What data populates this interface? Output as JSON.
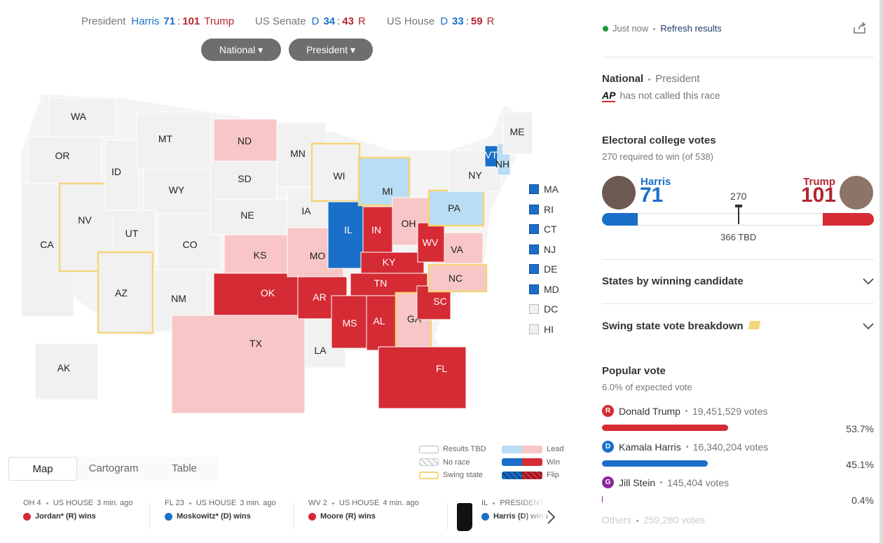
{
  "topbar": {
    "races": [
      {
        "label": "President",
        "d": "Harris",
        "d_votes": 71,
        "sep": ":",
        "r_votes": 101,
        "r": "Trump"
      },
      {
        "label": "US Senate",
        "d": "D",
        "d_votes": 34,
        "sep": ":",
        "r_votes": 43,
        "r": "R"
      },
      {
        "label": "US House",
        "d": "D",
        "d_votes": 33,
        "sep": ":",
        "r_votes": 59,
        "r": "R"
      }
    ],
    "dropdowns": [
      "National",
      "President"
    ]
  },
  "map": {
    "states": [
      {
        "abbr": "WA",
        "status": "tbd"
      },
      {
        "abbr": "OR",
        "status": "tbd"
      },
      {
        "abbr": "CA",
        "status": "tbd"
      },
      {
        "abbr": "NV",
        "status": "tbd",
        "swing": true
      },
      {
        "abbr": "ID",
        "status": "tbd"
      },
      {
        "abbr": "MT",
        "status": "tbd"
      },
      {
        "abbr": "WY",
        "status": "tbd"
      },
      {
        "abbr": "UT",
        "status": "tbd"
      },
      {
        "abbr": "AZ",
        "status": "tbd",
        "swing": true
      },
      {
        "abbr": "CO",
        "status": "tbd"
      },
      {
        "abbr": "NM",
        "status": "tbd"
      },
      {
        "abbr": "ND",
        "status": "lead_r"
      },
      {
        "abbr": "SD",
        "status": "tbd"
      },
      {
        "abbr": "NE",
        "status": "tbd"
      },
      {
        "abbr": "KS",
        "status": "lead_r"
      },
      {
        "abbr": "TX",
        "status": "lead_r"
      },
      {
        "abbr": "OK",
        "status": "win_r"
      },
      {
        "abbr": "MN",
        "status": "tbd"
      },
      {
        "abbr": "IA",
        "status": "tbd"
      },
      {
        "abbr": "MO",
        "status": "lead_r"
      },
      {
        "abbr": "AR",
        "status": "win_r"
      },
      {
        "abbr": "LA",
        "status": "tbd"
      },
      {
        "abbr": "WI",
        "status": "tbd",
        "swing": true
      },
      {
        "abbr": "IL",
        "status": "win_d"
      },
      {
        "abbr": "MI",
        "status": "lead_d",
        "swing": true
      },
      {
        "abbr": "IN",
        "status": "win_r"
      },
      {
        "abbr": "OH",
        "status": "lead_r"
      },
      {
        "abbr": "KY",
        "status": "win_r"
      },
      {
        "abbr": "TN",
        "status": "win_r"
      },
      {
        "abbr": "MS",
        "status": "win_r"
      },
      {
        "abbr": "AL",
        "status": "win_r"
      },
      {
        "abbr": "GA",
        "status": "lead_r",
        "swing": true
      },
      {
        "abbr": "FL",
        "status": "win_r"
      },
      {
        "abbr": "SC",
        "status": "win_r"
      },
      {
        "abbr": "NC",
        "status": "lead_r",
        "swing": true
      },
      {
        "abbr": "VA",
        "status": "lead_r"
      },
      {
        "abbr": "WV",
        "status": "win_r"
      },
      {
        "abbr": "PA",
        "status": "lead_d",
        "swing": true
      },
      {
        "abbr": "NY",
        "status": "tbd"
      },
      {
        "abbr": "VT",
        "status": "win_d"
      },
      {
        "abbr": "NH",
        "status": "lead_d"
      },
      {
        "abbr": "ME",
        "status": "tbd"
      },
      {
        "abbr": "AK",
        "status": "tbd"
      }
    ],
    "small_states": [
      {
        "abbr": "MA",
        "status": "win_d"
      },
      {
        "abbr": "RI",
        "status": "win_d"
      },
      {
        "abbr": "CT",
        "status": "win_d"
      },
      {
        "abbr": "NJ",
        "status": "win_d"
      },
      {
        "abbr": "DE",
        "status": "win_d"
      },
      {
        "abbr": "MD",
        "status": "win_d"
      },
      {
        "abbr": "DC",
        "status": "tbd"
      },
      {
        "abbr": "HI",
        "status": "tbd"
      }
    ],
    "legend": [
      "Results TBD",
      "No race",
      "Swing state",
      "Lead",
      "Win",
      "Flip"
    ]
  },
  "view_tabs": [
    "Map",
    "Cartogram",
    "Table"
  ],
  "ticker": [
    {
      "district": "OH 4",
      "office": "US HOUSE",
      "time": "3 min. ago",
      "result": "Jordan* (R) wins",
      "party": "R"
    },
    {
      "district": "FL 23",
      "office": "US HOUSE",
      "time": "3 min. ago",
      "result": "Moskowitz* (D) wins",
      "party": "D"
    },
    {
      "district": "WV 2",
      "office": "US HOUSE",
      "time": "4 min. ago",
      "result": "Moore (R) wins",
      "party": "R"
    },
    {
      "district": "IL",
      "office": "PRESIDENT",
      "result": "Harris (D) wins",
      "party": "D"
    }
  ],
  "sidebar": {
    "status": "Just now",
    "refresh": "Refresh results",
    "scope": "National",
    "race": "President",
    "ap": "AP",
    "ap_note": "has not called this race",
    "electoral": {
      "title": "Electoral college votes",
      "subtitle": "270 required to win (of 538)",
      "harris_name": "Harris",
      "harris_votes": 71,
      "trump_name": "Trump",
      "trump_votes": 101,
      "threshold": 270,
      "tbd": 366,
      "tbd_label": "366 TBD"
    },
    "accordions": [
      "States by winning candidate",
      "Swing state vote breakdown"
    ],
    "popular": {
      "title": "Popular vote",
      "subtitle": "6.0% of expected vote",
      "candidates": [
        {
          "party": "R",
          "name": "Donald Trump",
          "votes": "19,451,529 votes",
          "percent": 53.7,
          "percent_label": "53.7%",
          "color": "#d52b35"
        },
        {
          "party": "D",
          "name": "Kamala Harris",
          "votes": "16,340,204 votes",
          "percent": 45.1,
          "percent_label": "45.1%",
          "color": "#1a6fc9"
        },
        {
          "party": "G",
          "name": "Jill Stein",
          "votes": "145,404 votes",
          "percent": 0.4,
          "percent_label": "0.4%",
          "color": "#8a2a9a"
        }
      ],
      "others": "Others",
      "others_votes": "259,280 votes"
    }
  }
}
